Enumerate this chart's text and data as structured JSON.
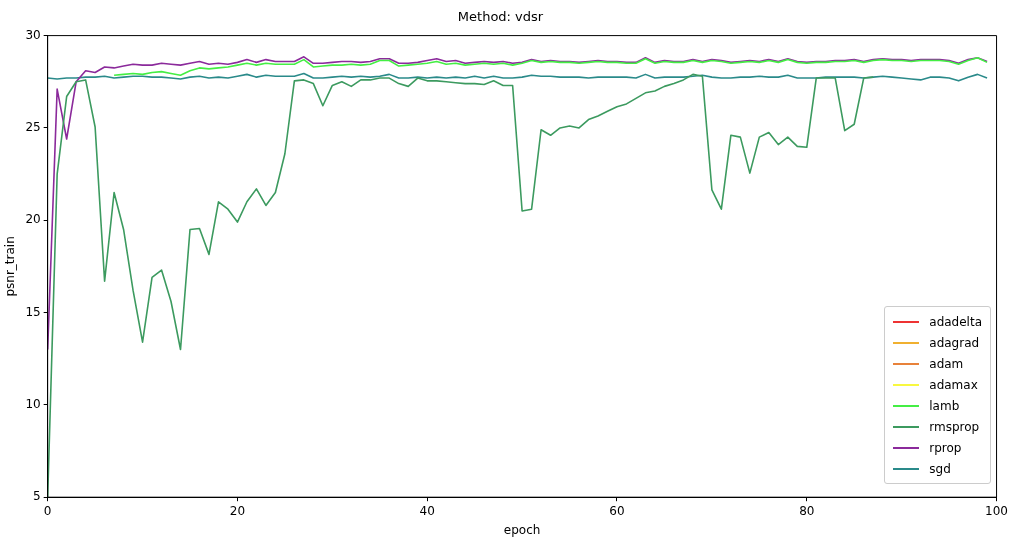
{
  "chart_data": {
    "type": "line",
    "title": "Method: vdsr",
    "xlabel": "epoch",
    "ylabel": "psnr_train",
    "x": [
      0,
      1,
      2,
      3,
      4,
      5,
      6,
      7,
      8,
      9,
      10,
      11,
      12,
      13,
      14,
      15,
      16,
      17,
      18,
      19,
      20,
      21,
      22,
      23,
      24,
      25,
      26,
      27,
      28,
      29,
      30,
      31,
      32,
      33,
      34,
      35,
      36,
      37,
      38,
      39,
      40,
      41,
      42,
      43,
      44,
      45,
      46,
      47,
      48,
      49,
      50,
      51,
      52,
      53,
      54,
      55,
      56,
      57,
      58,
      59,
      60,
      61,
      62,
      63,
      64,
      65,
      66,
      67,
      68,
      69,
      70,
      71,
      72,
      73,
      74,
      75,
      76,
      77,
      78,
      79,
      80,
      81,
      82,
      83,
      84,
      85,
      86,
      87,
      88,
      89,
      90,
      91,
      92,
      93,
      94,
      95,
      96,
      97,
      98,
      99
    ],
    "xlim": [
      0,
      100
    ],
    "xticks": [
      0,
      20,
      40,
      60,
      80,
      100
    ],
    "ylim": [
      5,
      30
    ],
    "yticks": [
      5,
      10,
      15,
      20,
      25,
      30
    ],
    "grid": false,
    "legend": "bottom right",
    "marker": "none",
    "line_style": "solid",
    "series": [
      {
        "name": "adadelta",
        "color": "#ee3333",
        "values": [
          null,
          null,
          null,
          null,
          null,
          null,
          null,
          null,
          null,
          null,
          null,
          null,
          null,
          null,
          null,
          null,
          null,
          null,
          null,
          null,
          null,
          null,
          null,
          null,
          null,
          null,
          null,
          null,
          null,
          null,
          null,
          null,
          null,
          null,
          null,
          null,
          null,
          null,
          null,
          null,
          null,
          null,
          null,
          null,
          null,
          null,
          null,
          null,
          null,
          null,
          null,
          null,
          null,
          null,
          null,
          null,
          null,
          null,
          null,
          null,
          null,
          null,
          null,
          null,
          null,
          null,
          null,
          null,
          null,
          null,
          null,
          null,
          null,
          null,
          null,
          null,
          null,
          null,
          null,
          null,
          null,
          null,
          null,
          null,
          null,
          null,
          null,
          null,
          null,
          null,
          null,
          null,
          null,
          null,
          null,
          null,
          null,
          null,
          null,
          null
        ]
      },
      {
        "name": "adagrad",
        "color": "#f0b030",
        "values": [
          null,
          null,
          null,
          null,
          null,
          null,
          null,
          null,
          null,
          null,
          null,
          null,
          null,
          null,
          null,
          null,
          null,
          null,
          null,
          null,
          null,
          null,
          null,
          null,
          null,
          null,
          null,
          null,
          null,
          null,
          null,
          null,
          null,
          null,
          null,
          null,
          null,
          null,
          null,
          null,
          null,
          null,
          null,
          null,
          null,
          null,
          null,
          null,
          null,
          null,
          null,
          null,
          null,
          null,
          null,
          null,
          null,
          null,
          null,
          null,
          null,
          null,
          null,
          null,
          null,
          null,
          null,
          null,
          null,
          null,
          null,
          null,
          null,
          null,
          null,
          null,
          null,
          null,
          null,
          null,
          null,
          null,
          null,
          null,
          null,
          null,
          null,
          null,
          null,
          null,
          null,
          null,
          null,
          null,
          null,
          null,
          null,
          null,
          null,
          null
        ]
      },
      {
        "name": "adam",
        "color": "#e8823a",
        "values": [
          null,
          null,
          null,
          null,
          null,
          null,
          null,
          null,
          null,
          null,
          null,
          null,
          null,
          null,
          null,
          null,
          null,
          null,
          null,
          null,
          null,
          null,
          null,
          null,
          null,
          null,
          null,
          null,
          null,
          null,
          null,
          null,
          null,
          null,
          null,
          null,
          null,
          null,
          null,
          null,
          null,
          null,
          null,
          null,
          null,
          null,
          null,
          null,
          null,
          null,
          null,
          null,
          null,
          null,
          null,
          null,
          null,
          null,
          null,
          null,
          null,
          null,
          null,
          null,
          null,
          null,
          null,
          null,
          null,
          null,
          null,
          null,
          null,
          null,
          null,
          null,
          null,
          null,
          null,
          null,
          null,
          null,
          null,
          null,
          null,
          null,
          null,
          null,
          null,
          null,
          null,
          null,
          null,
          null,
          null,
          null,
          null,
          null,
          null,
          null
        ]
      },
      {
        "name": "adamax",
        "color": "#f8f840",
        "values": [
          null,
          null,
          null,
          null,
          null,
          null,
          null,
          null,
          null,
          null,
          null,
          null,
          null,
          null,
          null,
          null,
          null,
          null,
          null,
          null,
          null,
          null,
          null,
          null,
          null,
          null,
          null,
          null,
          null,
          null,
          null,
          null,
          null,
          null,
          null,
          null,
          null,
          null,
          null,
          null,
          null,
          null,
          null,
          null,
          null,
          null,
          null,
          null,
          null,
          null,
          null,
          null,
          null,
          null,
          null,
          null,
          null,
          null,
          null,
          null,
          null,
          null,
          null,
          null,
          null,
          null,
          null,
          null,
          null,
          null,
          null,
          null,
          null,
          null,
          null,
          null,
          null,
          null,
          null,
          null,
          null,
          null,
          null,
          null,
          null,
          null,
          null,
          null,
          null,
          null,
          null,
          null,
          null,
          null,
          null,
          null,
          null,
          null,
          null,
          null
        ]
      },
      {
        "name": "lamb",
        "color": "#44ee44",
        "values": [
          null,
          null,
          null,
          null,
          null,
          null,
          null,
          27.85,
          27.9,
          27.95,
          27.9,
          28.0,
          28.05,
          27.95,
          27.85,
          28.1,
          28.25,
          28.2,
          28.25,
          28.3,
          28.4,
          28.5,
          28.4,
          28.5,
          28.45,
          28.45,
          28.45,
          28.7,
          28.3,
          28.35,
          28.4,
          28.4,
          28.45,
          28.4,
          28.45,
          28.65,
          28.65,
          28.35,
          28.4,
          28.45,
          28.5,
          28.6,
          28.45,
          28.5,
          28.4,
          28.45,
          28.5,
          28.45,
          28.5,
          28.4,
          28.5,
          28.65,
          28.55,
          28.6,
          28.55,
          28.55,
          28.5,
          28.55,
          28.6,
          28.55,
          28.55,
          28.5,
          28.5,
          28.75,
          28.5,
          28.6,
          28.55,
          28.55,
          28.65,
          28.55,
          28.65,
          28.6,
          28.5,
          28.55,
          28.6,
          28.55,
          28.65,
          28.55,
          28.7,
          28.55,
          28.5,
          28.55,
          28.55,
          28.6,
          28.6,
          28.65,
          28.55,
          28.65,
          28.7,
          28.65,
          28.65,
          28.6,
          28.65,
          28.65,
          28.65,
          28.6,
          28.45,
          28.65,
          28.8,
          28.55
        ]
      },
      {
        "name": "rmsprop",
        "color": "#3c9a5f",
        "values": [
          5,
          22.5,
          26.7,
          27.5,
          27.6,
          25.05,
          16.7,
          21.5,
          19.5,
          16.2,
          13.4,
          16.9,
          17.3,
          15.6,
          13.0,
          19.5,
          19.55,
          18.15,
          21.0,
          20.6,
          19.9,
          21.0,
          21.7,
          20.8,
          21.5,
          23.6,
          27.55,
          27.6,
          27.4,
          26.2,
          27.3,
          27.5,
          27.25,
          27.6,
          27.6,
          27.7,
          27.7,
          27.4,
          27.25,
          27.7,
          27.55,
          27.55,
          27.5,
          27.45,
          27.4,
          27.4,
          27.35,
          27.55,
          27.3,
          27.3,
          20.5,
          20.6,
          24.9,
          24.6,
          25.0,
          25.1,
          25.0,
          25.45,
          25.65,
          25.9,
          26.15,
          26.3,
          26.6,
          26.9,
          27.0,
          27.25,
          27.4,
          27.6,
          27.9,
          27.8,
          21.65,
          20.6,
          24.6,
          24.5,
          22.55,
          24.5,
          24.75,
          24.1,
          24.5,
          24.0,
          23.95,
          27.7,
          27.7,
          27.7,
          24.85,
          25.2,
          27.7,
          27.75,
          null,
          null,
          null,
          null,
          null,
          null,
          null,
          null,
          null,
          null,
          null,
          null
        ]
      },
      {
        "name": "rprop",
        "color": "#8b2a9b",
        "values": [
          13,
          27.1,
          24.4,
          27.5,
          28.1,
          28.0,
          28.3,
          28.25,
          28.35,
          28.45,
          28.4,
          28.4,
          28.5,
          28.45,
          28.4,
          28.5,
          28.6,
          28.45,
          28.5,
          28.45,
          28.55,
          28.7,
          28.55,
          28.7,
          28.6,
          28.6,
          28.6,
          28.85,
          28.5,
          28.5,
          28.55,
          28.6,
          28.6,
          28.55,
          28.6,
          28.75,
          28.75,
          28.5,
          28.5,
          28.55,
          28.65,
          28.75,
          28.6,
          28.65,
          28.5,
          28.55,
          28.6,
          28.55,
          28.6,
          28.5,
          28.55,
          28.7,
          28.6,
          28.65,
          28.6,
          28.6,
          28.55,
          28.6,
          28.65,
          28.6,
          28.6,
          28.55,
          28.55,
          28.8,
          28.55,
          28.65,
          28.6,
          28.6,
          28.7,
          28.6,
          28.7,
          28.65,
          28.55,
          28.6,
          28.65,
          28.6,
          28.7,
          28.6,
          28.75,
          28.6,
          28.55,
          28.6,
          28.6,
          28.65,
          28.65,
          28.7,
          28.6,
          28.7,
          28.75,
          28.7,
          28.7,
          28.65,
          28.7,
          28.7,
          28.7,
          28.65,
          28.5,
          28.7,
          28.8,
          28.6
        ]
      },
      {
        "name": "sgd",
        "color": "#2a8a8a",
        "values": [
          27.7,
          27.65,
          27.7,
          27.7,
          27.75,
          27.75,
          27.8,
          27.7,
          27.75,
          27.8,
          27.8,
          27.75,
          27.75,
          27.7,
          27.65,
          27.75,
          27.8,
          27.7,
          27.75,
          27.7,
          27.8,
          27.9,
          27.75,
          27.85,
          27.8,
          27.8,
          27.8,
          27.95,
          27.7,
          27.7,
          27.75,
          27.8,
          27.75,
          27.8,
          27.75,
          27.8,
          27.9,
          27.7,
          27.7,
          27.75,
          27.7,
          27.75,
          27.7,
          27.75,
          27.7,
          27.8,
          27.7,
          27.8,
          27.7,
          27.7,
          27.75,
          27.85,
          27.8,
          27.8,
          27.75,
          27.75,
          27.75,
          27.7,
          27.75,
          27.75,
          27.75,
          27.75,
          27.7,
          27.9,
          27.7,
          27.75,
          27.75,
          27.75,
          27.8,
          27.85,
          27.75,
          27.7,
          27.7,
          27.75,
          27.75,
          27.8,
          27.75,
          27.75,
          27.85,
          27.7,
          27.7,
          27.7,
          27.75,
          27.75,
          27.75,
          27.75,
          27.7,
          27.75,
          27.8,
          27.75,
          27.7,
          27.65,
          27.6,
          27.75,
          27.75,
          27.7,
          27.55,
          27.75,
          27.9,
          27.7
        ]
      }
    ]
  }
}
